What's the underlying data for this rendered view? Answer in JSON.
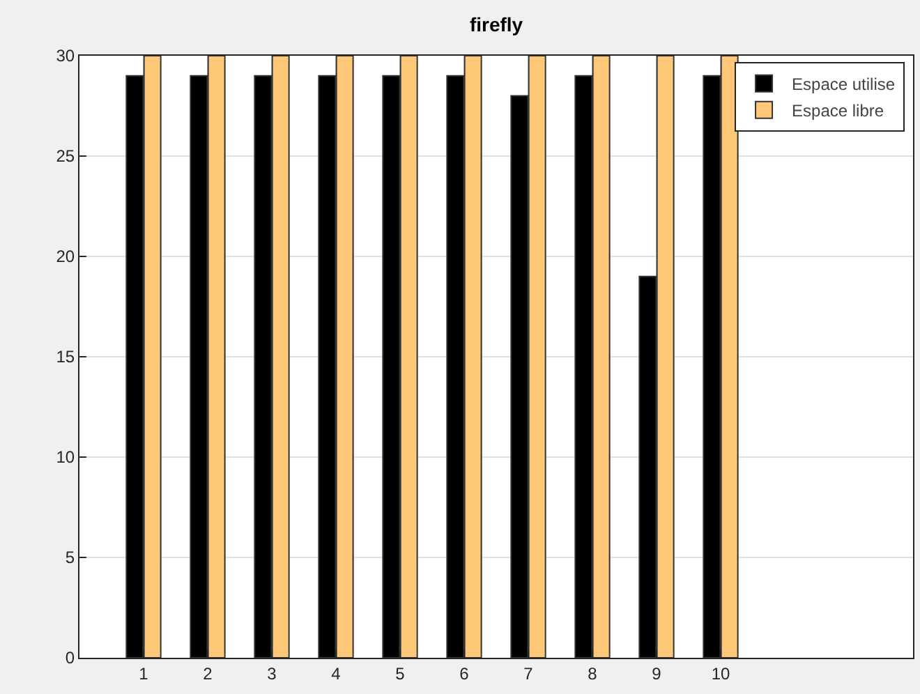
{
  "chart_data": {
    "type": "bar",
    "title": "firefly",
    "x": [
      1,
      2,
      3,
      4,
      5,
      6,
      7,
      8,
      9,
      10
    ],
    "series": [
      {
        "name": "Espace utilise",
        "color": "#000000",
        "values": [
          29,
          29,
          29,
          29,
          29,
          29,
          28,
          29,
          19,
          29
        ]
      },
      {
        "name": "Espace libre",
        "color": "#ffc878",
        "values": [
          30,
          30,
          30,
          30,
          30,
          30,
          30,
          30,
          30,
          30
        ]
      }
    ],
    "xlim": [
      0,
      13
    ],
    "xticks": [
      1,
      2,
      3,
      4,
      5,
      6,
      7,
      8,
      9,
      10
    ],
    "ylim": [
      0,
      30
    ],
    "yticks": [
      0,
      5,
      10,
      15,
      20,
      25,
      30
    ],
    "grid": true,
    "legend": "top right"
  }
}
